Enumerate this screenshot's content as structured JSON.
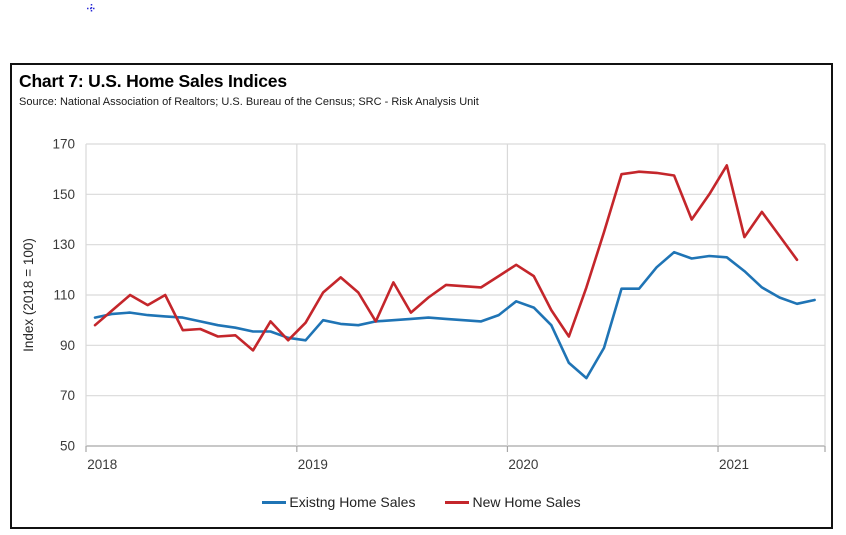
{
  "artifact": {
    "note": "small blue dotted cursor mark at top of page"
  },
  "header": {
    "title": "Chart 7: U.S. Home Sales Indices",
    "source": "Source: National Association of Realtors; U.S. Bureau of the Census; SRC - Risk Analysis Unit"
  },
  "chart_data": {
    "type": "line",
    "title": "Chart 7: U.S. Home Sales Indices",
    "xlabel": "",
    "ylabel": "Index (2018 = 100)",
    "ylim": [
      50,
      170
    ],
    "y_ticks": [
      50,
      70,
      90,
      110,
      130,
      150,
      170
    ],
    "x_tick_labels": [
      "2018",
      "2019",
      "2020",
      "2021"
    ],
    "grid": true,
    "legend_position": "bottom",
    "x": [
      "2018-01",
      "2018-02",
      "2018-03",
      "2018-04",
      "2018-05",
      "2018-06",
      "2018-07",
      "2018-08",
      "2018-09",
      "2018-10",
      "2018-11",
      "2018-12",
      "2019-01",
      "2019-02",
      "2019-03",
      "2019-04",
      "2019-05",
      "2019-06",
      "2019-07",
      "2019-08",
      "2019-09",
      "2019-10",
      "2019-11",
      "2019-12",
      "2020-01",
      "2020-02",
      "2020-03",
      "2020-04",
      "2020-05",
      "2020-06",
      "2020-07",
      "2020-08",
      "2020-09",
      "2020-10",
      "2020-11",
      "2020-12",
      "2021-01",
      "2021-02",
      "2021-03",
      "2021-04",
      "2021-05",
      "2021-06"
    ],
    "series": [
      {
        "name": "Existng Home Sales",
        "color": "#1F74B5",
        "values": [
          101,
          102.5,
          103,
          102,
          101.5,
          101,
          99.5,
          98,
          97,
          95.5,
          95.5,
          93,
          92,
          100,
          98.5,
          98,
          99.5,
          100,
          100.5,
          101,
          100.5,
          100,
          99.5,
          102,
          107.5,
          105,
          98,
          83,
          77,
          89,
          112.5,
          112.5,
          121,
          127,
          124.5,
          125.5,
          125,
          119.5,
          113,
          109,
          106.5,
          108
        ]
      },
      {
        "name": "New Home Sales",
        "color": "#C4262B",
        "values": [
          98,
          104,
          110,
          106,
          110,
          96,
          96.5,
          93.5,
          94,
          88,
          99.5,
          92,
          99,
          111,
          117,
          111,
          99.5,
          115,
          103,
          109,
          114,
          113.5,
          113,
          117.5,
          122,
          117.5,
          104,
          93.5,
          113,
          135,
          158,
          159,
          158.5,
          157.5,
          140,
          150,
          161.5,
          133,
          143,
          133.5,
          124,
          null
        ]
      }
    ]
  }
}
